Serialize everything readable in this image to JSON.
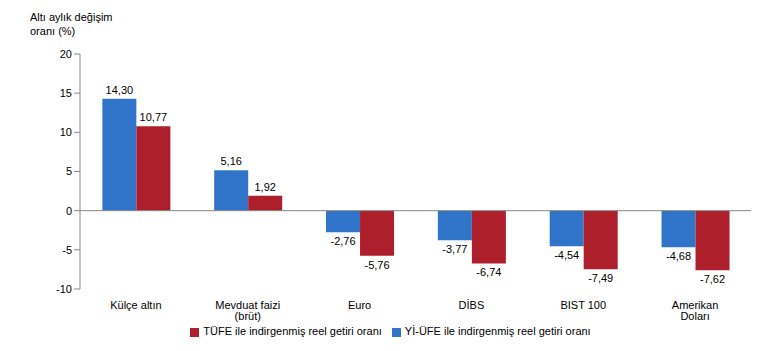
{
  "chart_data": {
    "type": "bar",
    "y_label": "Altı aylık değişim oranı (%)",
    "categories": [
      "Külçe altın",
      "Mevduat faizi (brüt)",
      "Euro",
      "DİBS",
      "BIST 100",
      "Amerikan Doları"
    ],
    "series": [
      {
        "name": "Yİ-ÜFE ile indirgenmiş reel getiri oranı",
        "color": "#2f74c8",
        "values": [
          14.3,
          5.16,
          -2.76,
          -3.77,
          -4.54,
          -4.68
        ],
        "value_labels": [
          "14,30",
          "5,16",
          "-2,76",
          "-3,77",
          "-4,54",
          "-4,68"
        ]
      },
      {
        "name": "TÜFE ile indirgenmiş reel getiri oranı",
        "color": "#ad1f2a",
        "values": [
          10.77,
          1.92,
          -5.76,
          -6.74,
          -7.49,
          -7.62
        ],
        "value_labels": [
          "10,77",
          "1,92",
          "-5,76",
          "-6,74",
          "-7,49",
          "-7,62"
        ]
      }
    ],
    "ylim": [
      -10,
      20
    ],
    "yticks": [
      -10,
      -5,
      0,
      5,
      10,
      15,
      20
    ],
    "grid": false,
    "legend": "bottom",
    "data_labels": true
  }
}
